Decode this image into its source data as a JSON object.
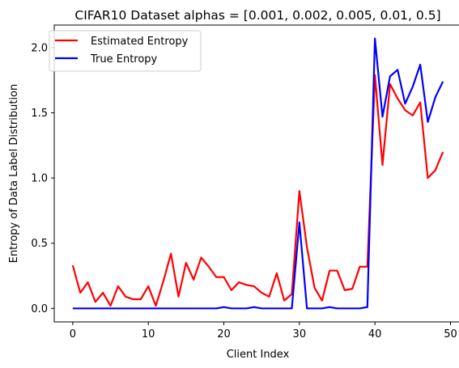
{
  "chart_data": {
    "type": "line",
    "title": "CIFAR10 Dataset alphas = [0.001, 0.002, 0.005, 0.01, 0.5]",
    "xlabel": "Client Index",
    "ylabel": "Entropy of Data Label Distribution",
    "xlim": [
      -2.45,
      51.45
    ],
    "ylim": [
      -0.1035,
      2.173
    ],
    "xticks": [
      0,
      10,
      20,
      30,
      40,
      50
    ],
    "xtick_labels": [
      "0",
      "10",
      "20",
      "30",
      "40",
      "50"
    ],
    "yticks": [
      0.0,
      0.5,
      1.0,
      1.5,
      2.0
    ],
    "ytick_labels": [
      "0.0",
      "0.5",
      "1.0",
      "1.5",
      "2.0"
    ],
    "grid": false,
    "legend_position": "upper-left",
    "x": [
      0,
      1,
      2,
      3,
      4,
      5,
      6,
      7,
      8,
      9,
      10,
      11,
      12,
      13,
      14,
      15,
      16,
      17,
      18,
      19,
      20,
      21,
      22,
      23,
      24,
      25,
      26,
      27,
      28,
      29,
      30,
      31,
      32,
      33,
      34,
      35,
      36,
      37,
      38,
      39,
      40,
      41,
      42,
      43,
      44,
      45,
      46,
      47,
      48,
      49
    ],
    "series": [
      {
        "name": "Estimated Entropy",
        "color": "#ff0000",
        "values": [
          0.33,
          0.12,
          0.2,
          0.05,
          0.12,
          0.02,
          0.17,
          0.09,
          0.07,
          0.07,
          0.17,
          0.02,
          0.21,
          0.42,
          0.09,
          0.35,
          0.22,
          0.39,
          0.32,
          0.24,
          0.24,
          0.14,
          0.2,
          0.18,
          0.17,
          0.12,
          0.09,
          0.27,
          0.06,
          0.11,
          0.9,
          0.47,
          0.16,
          0.06,
          0.29,
          0.29,
          0.14,
          0.15,
          0.32,
          0.32,
          1.79,
          1.1,
          1.72,
          1.61,
          1.52,
          1.48,
          1.58,
          1.0,
          1.06,
          1.2
        ]
      },
      {
        "name": "True Entropy",
        "color": "#0000ff",
        "values": [
          0.0,
          0.0,
          0.0,
          0.0,
          0.0,
          0.0,
          0.0,
          0.0,
          0.0,
          0.0,
          0.0,
          0.0,
          0.0,
          0.0,
          0.0,
          0.0,
          0.0,
          0.0,
          0.0,
          0.0,
          0.01,
          0.0,
          0.0,
          0.0,
          0.01,
          0.0,
          0.0,
          0.0,
          0.0,
          0.0,
          0.66,
          0.0,
          0.0,
          0.0,
          0.01,
          0.0,
          0.0,
          0.0,
          0.0,
          0.01,
          2.07,
          1.47,
          1.78,
          1.83,
          1.57,
          1.7,
          1.87,
          1.43,
          1.62,
          1.74
        ]
      }
    ]
  }
}
